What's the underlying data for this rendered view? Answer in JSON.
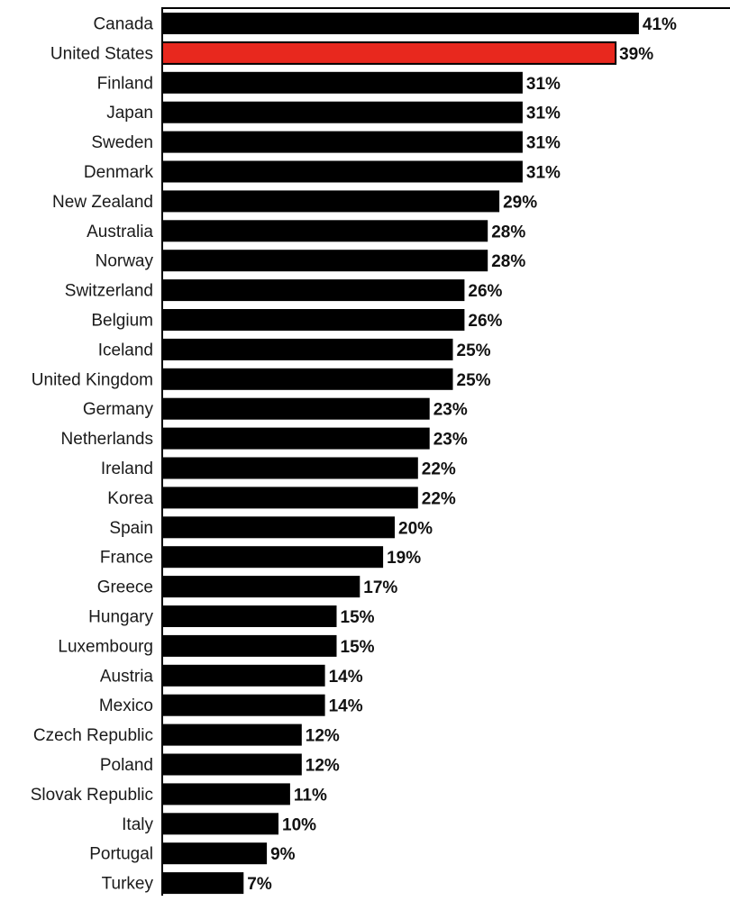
{
  "chart_data": {
    "type": "bar",
    "orientation": "horizontal",
    "categories": [
      "Canada",
      "United States",
      "Finland",
      "Japan",
      "Sweden",
      "Denmark",
      "New Zealand",
      "Australia",
      "Norway",
      "Switzerland",
      "Belgium",
      "Iceland",
      "United Kingdom",
      "Germany",
      "Netherlands",
      "Ireland",
      "Korea",
      "Spain",
      "France",
      "Greece",
      "Hungary",
      "Luxembourg",
      "Austria",
      "Mexico",
      "Czech Republic",
      "Poland",
      "Slovak Republic",
      "Italy",
      "Portugal",
      "Turkey"
    ],
    "values": [
      41,
      39,
      31,
      31,
      31,
      31,
      29,
      28,
      28,
      26,
      26,
      25,
      25,
      23,
      23,
      22,
      22,
      20,
      19,
      17,
      15,
      15,
      14,
      14,
      12,
      12,
      11,
      10,
      9,
      7
    ],
    "value_labels": [
      "41%",
      "39%",
      "31%",
      "31%",
      "31%",
      "31%",
      "29%",
      "28%",
      "28%",
      "26%",
      "26%",
      "25%",
      "25%",
      "23%",
      "23%",
      "22%",
      "22%",
      "20%",
      "19%",
      "17%",
      "15%",
      "15%",
      "14%",
      "14%",
      "12%",
      "12%",
      "11%",
      "10%",
      "9%",
      "7%"
    ],
    "highlight_category": "United States",
    "colors": {
      "bar": "#000000",
      "highlight": "#e8281e",
      "highlight_stroke": "#000000"
    },
    "xlim": [
      0,
      41
    ],
    "grid": false,
    "legend": "none",
    "title": "",
    "xlabel": "",
    "ylabel": ""
  }
}
